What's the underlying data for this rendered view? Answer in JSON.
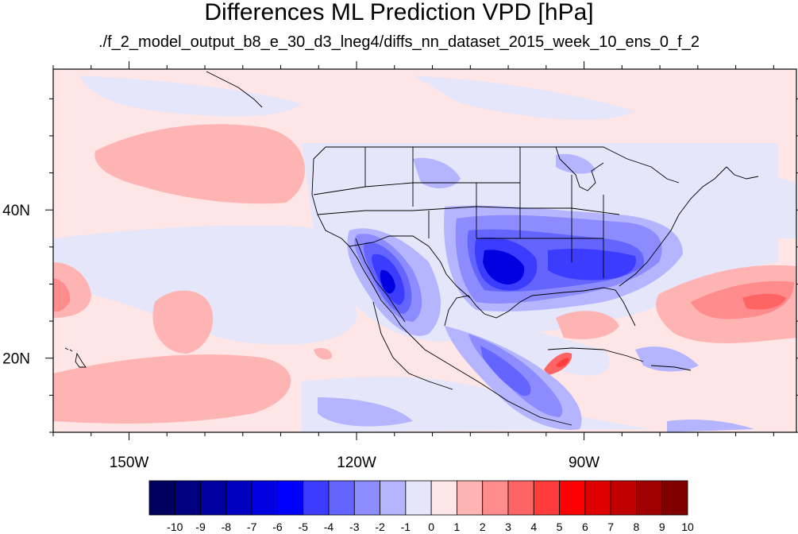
{
  "title": "Differences ML Prediction VPD [hPa]",
  "subtitle": "./f_2_model_output_b8_e_30_d3_lneg4/diffs_nn_dataset_2015_week_10_ens_0_f_2",
  "map": {
    "lon_range": [
      -160,
      -62
    ],
    "lat_range": [
      10,
      59
    ],
    "x_ticks": [
      {
        "lon": -150,
        "label": "150W"
      },
      {
        "lon": -120,
        "label": "120W"
      },
      {
        "lon": -90,
        "label": "90W"
      }
    ],
    "y_ticks": [
      {
        "lat": 20,
        "label": "20N"
      },
      {
        "lat": 40,
        "label": "40N"
      }
    ]
  },
  "colorbar": {
    "labels": [
      "-10",
      "-9",
      "-8",
      "-7",
      "-6",
      "-5",
      "-4",
      "-3",
      "-2",
      "-1",
      "0",
      "1",
      "2",
      "3",
      "4",
      "5",
      "6",
      "7",
      "8",
      "9",
      "10"
    ],
    "colors": [
      "#00005f",
      "#000080",
      "#0000a0",
      "#0000c0",
      "#0000e0",
      "#0000ff",
      "#3c3cff",
      "#6464ff",
      "#8c8cff",
      "#b4b4ff",
      "#e6e6fa",
      "#ffe6e6",
      "#ffb4b4",
      "#ff8c8c",
      "#ff6464",
      "#ff3c3c",
      "#ff0000",
      "#e00000",
      "#c00000",
      "#a00000",
      "#800000"
    ]
  }
}
